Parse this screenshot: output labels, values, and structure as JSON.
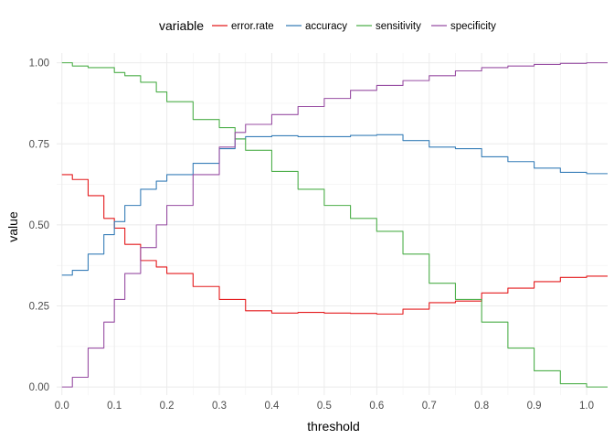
{
  "chart_data": {
    "type": "line",
    "xlabel": "threshold",
    "ylabel": "value",
    "xlim": [
      -0.01,
      1.04
    ],
    "ylim": [
      -0.025,
      1.03
    ],
    "xticks": [
      0.0,
      0.1,
      0.2,
      0.3,
      0.4,
      0.5,
      0.6,
      0.7,
      0.8,
      0.9,
      1.0
    ],
    "xtick_labels": [
      "0.0",
      "0.1",
      "0.2",
      "0.3",
      "0.4",
      "0.5",
      "0.6",
      "0.7",
      "0.8",
      "0.9",
      "1.0"
    ],
    "yticks": [
      0.0,
      0.25,
      0.5,
      0.75,
      1.0
    ],
    "ytick_labels": [
      "0.00",
      "0.25",
      "0.50",
      "0.75",
      "1.00"
    ],
    "grid": true,
    "legend": {
      "title": "variable",
      "position": "top"
    },
    "series": [
      {
        "name": "error.rate",
        "color": "#e41a1c",
        "x": [
          0.0,
          0.02,
          0.05,
          0.08,
          0.1,
          0.12,
          0.15,
          0.18,
          0.2,
          0.25,
          0.3,
          0.35,
          0.4,
          0.45,
          0.5,
          0.55,
          0.6,
          0.65,
          0.7,
          0.75,
          0.8,
          0.85,
          0.9,
          0.95,
          1.0,
          1.04
        ],
        "y": [
          0.655,
          0.64,
          0.59,
          0.52,
          0.49,
          0.44,
          0.39,
          0.37,
          0.35,
          0.31,
          0.27,
          0.235,
          0.228,
          0.23,
          0.228,
          0.227,
          0.225,
          0.24,
          0.26,
          0.265,
          0.29,
          0.305,
          0.325,
          0.338,
          0.342,
          0.342
        ]
      },
      {
        "name": "accuracy",
        "color": "#377eb8",
        "x": [
          0.0,
          0.02,
          0.05,
          0.08,
          0.1,
          0.12,
          0.15,
          0.18,
          0.2,
          0.25,
          0.3,
          0.33,
          0.35,
          0.4,
          0.45,
          0.5,
          0.55,
          0.6,
          0.65,
          0.7,
          0.75,
          0.8,
          0.85,
          0.9,
          0.95,
          1.0,
          1.04
        ],
        "y": [
          0.345,
          0.36,
          0.41,
          0.47,
          0.51,
          0.56,
          0.61,
          0.635,
          0.655,
          0.69,
          0.735,
          0.765,
          0.772,
          0.775,
          0.772,
          0.772,
          0.776,
          0.778,
          0.76,
          0.74,
          0.735,
          0.71,
          0.695,
          0.675,
          0.662,
          0.658,
          0.658
        ]
      },
      {
        "name": "sensitivity",
        "color": "#4daf4a",
        "x": [
          0.0,
          0.02,
          0.05,
          0.08,
          0.1,
          0.12,
          0.15,
          0.18,
          0.2,
          0.25,
          0.3,
          0.33,
          0.35,
          0.4,
          0.45,
          0.5,
          0.55,
          0.6,
          0.65,
          0.7,
          0.75,
          0.8,
          0.85,
          0.9,
          0.95,
          1.0,
          1.04
        ],
        "y": [
          1.0,
          0.99,
          0.985,
          0.985,
          0.97,
          0.96,
          0.94,
          0.91,
          0.88,
          0.825,
          0.8,
          0.765,
          0.73,
          0.665,
          0.61,
          0.56,
          0.52,
          0.48,
          0.41,
          0.32,
          0.27,
          0.2,
          0.12,
          0.05,
          0.01,
          0.0,
          0.0
        ]
      },
      {
        "name": "specificity",
        "color": "#984ea3",
        "x": [
          0.0,
          0.02,
          0.05,
          0.08,
          0.1,
          0.12,
          0.15,
          0.18,
          0.2,
          0.25,
          0.3,
          0.33,
          0.35,
          0.4,
          0.45,
          0.5,
          0.55,
          0.6,
          0.65,
          0.7,
          0.75,
          0.8,
          0.85,
          0.9,
          0.95,
          1.0,
          1.04
        ],
        "y": [
          0.0,
          0.03,
          0.12,
          0.2,
          0.27,
          0.35,
          0.43,
          0.5,
          0.56,
          0.655,
          0.74,
          0.785,
          0.81,
          0.84,
          0.865,
          0.89,
          0.915,
          0.93,
          0.945,
          0.96,
          0.975,
          0.985,
          0.99,
          0.995,
          0.998,
          1.0,
          1.0
        ]
      }
    ]
  }
}
